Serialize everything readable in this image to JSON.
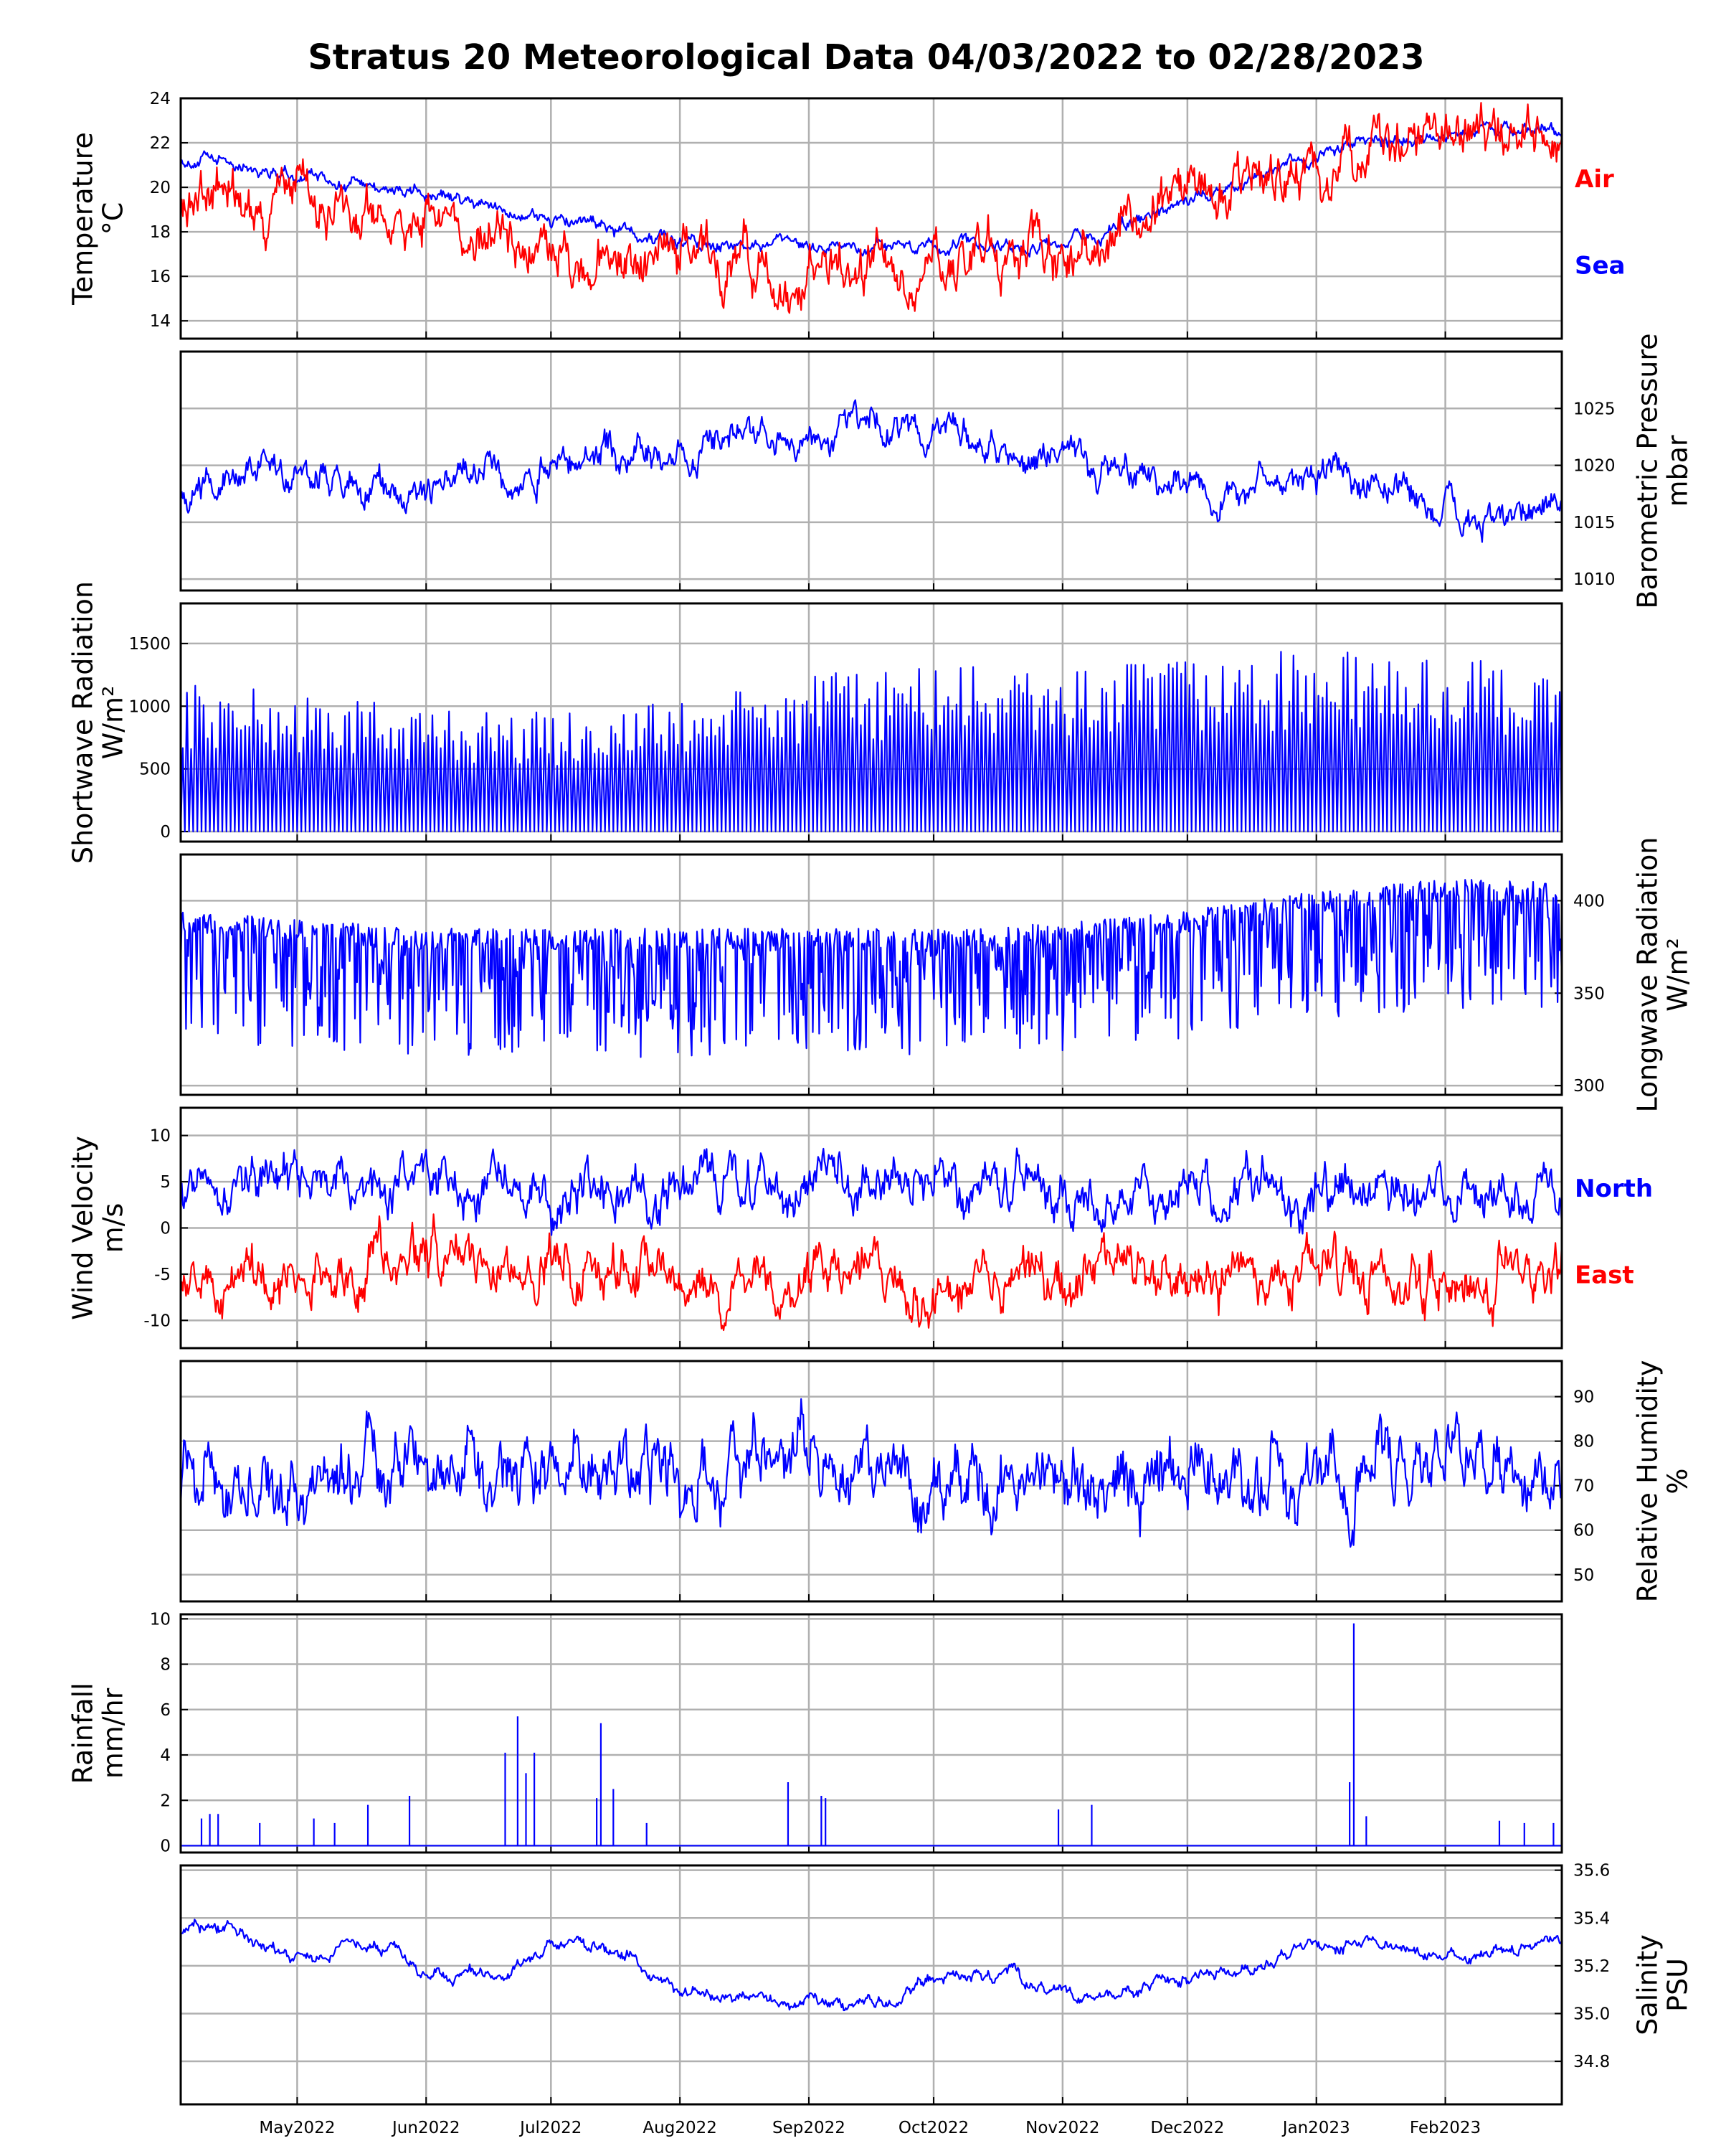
{
  "title": "Stratus 20 Meteorological Data 04/03/2022 to 02/28/2023",
  "colors": {
    "red": "#ff0000",
    "blue": "#0000ff",
    "grid": "#b0b0b0",
    "axis": "#000000"
  },
  "x_axis": {
    "start": "2022-04-03",
    "end": "2023-02-28",
    "tick_labels": [
      "May2022",
      "Jun2022",
      "Jul2022",
      "Aug2022",
      "Sep2022",
      "Oct2022",
      "Nov2022",
      "Dec2022",
      "Jan2023",
      "Feb2023"
    ],
    "tick_dates": [
      "2022-05-01",
      "2022-06-01",
      "2022-07-01",
      "2022-08-01",
      "2022-09-01",
      "2022-10-01",
      "2022-11-01",
      "2022-12-01",
      "2023-01-01",
      "2023-02-01"
    ]
  },
  "chart_data": [
    {
      "type": "line",
      "ylabel": [
        "Temperature",
        "°C"
      ],
      "ylabel_side": "left",
      "ylim": [
        13.2,
        24
      ],
      "yticks": [
        14,
        16,
        18,
        20,
        22,
        24
      ],
      "grid": true,
      "legend": [
        {
          "name": "Air",
          "color": "#ff0000"
        },
        {
          "name": "Sea",
          "color": "#0000ff"
        }
      ],
      "series": [
        {
          "name": "Sea",
          "color": "#0000ff",
          "x": [
            "2022-04-03",
            "2022-04-20",
            "2022-05-01",
            "2022-05-20",
            "2022-06-10",
            "2022-07-01",
            "2022-07-15",
            "2022-08-01",
            "2022-08-15",
            "2022-09-01",
            "2022-09-20",
            "2022-10-01",
            "2022-10-20",
            "2022-11-01",
            "2022-11-15",
            "2022-12-01",
            "2022-12-20",
            "2023-01-01",
            "2023-01-15",
            "2023-02-01",
            "2023-02-28"
          ],
          "y": [
            21.3,
            21.0,
            20.5,
            20.0,
            19.3,
            18.6,
            18.2,
            17.6,
            17.4,
            17.3,
            17.3,
            17.2,
            17.4,
            17.5,
            18.1,
            19.4,
            20.5,
            21.5,
            22.0,
            22.4,
            22.5
          ]
        },
        {
          "name": "Air",
          "color": "#ff0000",
          "x": [
            "2022-04-03",
            "2022-04-20",
            "2022-05-01",
            "2022-05-20",
            "2022-06-10",
            "2022-07-01",
            "2022-07-15",
            "2022-08-01",
            "2022-08-15",
            "2022-09-01",
            "2022-09-20",
            "2022-10-01",
            "2022-10-20",
            "2022-11-01",
            "2022-11-15",
            "2022-12-01",
            "2022-12-20",
            "2023-01-01",
            "2023-01-15",
            "2023-02-01",
            "2023-02-28"
          ],
          "y": [
            20.0,
            19.6,
            19.2,
            18.8,
            18.0,
            17.4,
            17.0,
            16.7,
            16.5,
            16.3,
            16.3,
            16.5,
            16.8,
            17.2,
            17.9,
            19.3,
            20.3,
            21.1,
            21.6,
            22.2,
            22.3
          ]
        }
      ]
    },
    {
      "type": "line",
      "ylabel": [
        "Barometric Pressure",
        "mbar"
      ],
      "ylabel_side": "right",
      "ylim": [
        1009,
        1030
      ],
      "yticks": [
        1010,
        1015,
        1020,
        1025
      ],
      "grid": true,
      "series": [
        {
          "name": "",
          "color": "#0000ff",
          "x": [
            "2022-04-03",
            "2022-04-20",
            "2022-05-01",
            "2022-05-20",
            "2022-06-01",
            "2022-06-10",
            "2022-06-20",
            "2022-07-01",
            "2022-07-15",
            "2022-08-01",
            "2022-08-15",
            "2022-09-01",
            "2022-09-15",
            "2022-10-01",
            "2022-10-15",
            "2022-11-01",
            "2022-11-15",
            "2022-12-01",
            "2022-12-15",
            "2023-01-01",
            "2023-01-15",
            "2023-02-01",
            "2023-02-15",
            "2023-02-28"
          ],
          "y": [
            1018,
            1020,
            1019,
            1018,
            1017,
            1020,
            1019,
            1020,
            1021,
            1021,
            1023,
            1022,
            1024,
            1023,
            1022,
            1020,
            1019,
            1018,
            1018,
            1019,
            1018,
            1016,
            1015,
            1017
          ]
        }
      ]
    },
    {
      "type": "line",
      "ylabel": [
        "Shortwave Radiation",
        "W/m²"
      ],
      "ylabel_side": "left",
      "ylim": [
        -80,
        1820
      ],
      "yticks": [
        0,
        500,
        1000,
        1500
      ],
      "grid": true,
      "series": [
        {
          "name": "",
          "color": "#0000ff",
          "note_type": "daily_peak",
          "x": [
            "2022-04-03",
            "2022-05-01",
            "2022-06-01",
            "2022-07-01",
            "2022-08-01",
            "2022-09-01",
            "2022-10-01",
            "2022-11-01",
            "2022-12-01",
            "2023-01-01",
            "2023-02-01",
            "2023-02-28"
          ],
          "y": [
            1200,
            1100,
            1000,
            950,
            1050,
            1250,
            1350,
            1300,
            1400,
            1450,
            1400,
            1300
          ]
        }
      ]
    },
    {
      "type": "line",
      "ylabel": [
        "Longwave Radiation",
        "W/m²"
      ],
      "ylabel_side": "right",
      "ylim": [
        295,
        425
      ],
      "yticks": [
        300,
        350,
        400
      ],
      "grid": true,
      "series": [
        {
          "name": "",
          "color": "#0000ff",
          "x": [
            "2022-04-03",
            "2022-05-01",
            "2022-06-01",
            "2022-07-01",
            "2022-08-01",
            "2022-09-01",
            "2022-10-01",
            "2022-11-01",
            "2022-12-01",
            "2023-01-01",
            "2023-02-01",
            "2023-02-28"
          ],
          "y": [
            395,
            390,
            385,
            385,
            385,
            385,
            385,
            388,
            395,
            405,
            412,
            410
          ]
        }
      ]
    },
    {
      "type": "line",
      "ylabel": [
        "Wind Velocity",
        "m/s"
      ],
      "ylabel_side": "left",
      "ylim": [
        -13,
        13
      ],
      "yticks": [
        -10,
        -5,
        0,
        5,
        10
      ],
      "grid": true,
      "legend": [
        {
          "name": "North",
          "color": "#0000ff"
        },
        {
          "name": "East",
          "color": "#ff0000"
        }
      ],
      "series": [
        {
          "name": "North",
          "color": "#0000ff",
          "x": [
            "2022-04-03",
            "2022-05-01",
            "2022-06-01",
            "2022-07-01",
            "2022-08-01",
            "2022-09-01",
            "2022-10-01",
            "2022-11-01",
            "2022-12-01",
            "2023-01-01",
            "2023-02-01",
            "2023-02-28"
          ],
          "y": [
            5,
            5,
            4,
            5,
            4,
            5,
            5,
            4,
            4,
            4,
            4,
            4
          ]
        },
        {
          "name": "East",
          "color": "#ff0000",
          "x": [
            "2022-04-03",
            "2022-05-01",
            "2022-06-01",
            "2022-07-01",
            "2022-08-01",
            "2022-09-01",
            "2022-10-01",
            "2022-11-01",
            "2022-12-01",
            "2023-01-01",
            "2023-02-01",
            "2023-02-28"
          ],
          "y": [
            -5,
            -6,
            -3,
            -3,
            -6,
            -6,
            -6,
            -5,
            -5,
            -5,
            -5,
            -5
          ]
        }
      ]
    },
    {
      "type": "line",
      "ylabel": [
        "Relative Humidity",
        "%"
      ],
      "ylabel_side": "right",
      "ylim": [
        44,
        98
      ],
      "yticks": [
        50,
        60,
        70,
        80,
        90
      ],
      "grid": true,
      "series": [
        {
          "name": "",
          "color": "#0000ff",
          "x": [
            "2022-04-03",
            "2022-05-01",
            "2022-06-01",
            "2022-07-01",
            "2022-08-01",
            "2022-09-01",
            "2022-10-01",
            "2022-11-01",
            "2022-12-01",
            "2023-01-01",
            "2023-02-01",
            "2023-02-28"
          ],
          "y": [
            72,
            73,
            74,
            72,
            73,
            74,
            70,
            71,
            74,
            74,
            75,
            73
          ]
        }
      ]
    },
    {
      "type": "bar",
      "ylabel": [
        "Rainfall",
        "mm/hr"
      ],
      "ylabel_side": "left",
      "ylim": [
        -0.3,
        10.2
      ],
      "yticks": [
        0,
        2,
        4,
        6,
        8,
        10
      ],
      "grid": true,
      "series": [
        {
          "name": "",
          "color": "#0000ff",
          "x": [
            "2022-04-08",
            "2022-04-10",
            "2022-04-12",
            "2022-04-22",
            "2022-05-05",
            "2022-05-10",
            "2022-05-18",
            "2022-05-28",
            "2022-06-20",
            "2022-06-23",
            "2022-06-25",
            "2022-06-27",
            "2022-07-12",
            "2022-07-13",
            "2022-07-16",
            "2022-07-24",
            "2022-08-27",
            "2022-09-04",
            "2022-09-05",
            "2022-10-31",
            "2022-11-08",
            "2023-01-09",
            "2023-01-10",
            "2023-01-13",
            "2023-02-14",
            "2023-02-20",
            "2023-02-27"
          ],
          "y": [
            1.2,
            1.4,
            1.4,
            1.0,
            1.2,
            1.0,
            1.8,
            2.2,
            4.1,
            5.7,
            3.2,
            4.1,
            2.1,
            5.4,
            2.5,
            1.0,
            2.8,
            2.2,
            2.1,
            1.6,
            1.8,
            2.8,
            9.8,
            1.3,
            1.1,
            1.0,
            1.0
          ]
        }
      ]
    },
    {
      "type": "line",
      "ylabel": [
        "Salinity",
        "PSU"
      ],
      "ylabel_side": "right",
      "ylim": [
        34.62,
        35.62
      ],
      "yticks": [
        34.8,
        35.0,
        35.2,
        35.4,
        35.6
      ],
      "grid": true,
      "series": [
        {
          "name": "",
          "color": "#0000ff",
          "x": [
            "2022-04-03",
            "2022-04-15",
            "2022-05-01",
            "2022-05-20",
            "2022-06-01",
            "2022-06-20",
            "2022-07-01",
            "2022-07-20",
            "2022-08-01",
            "2022-08-15",
            "2022-09-01",
            "2022-09-20",
            "2022-10-01",
            "2022-10-20",
            "2022-11-01",
            "2022-11-15",
            "2022-12-01",
            "2022-12-20",
            "2023-01-01",
            "2023-01-15",
            "2023-02-01",
            "2023-02-15",
            "2023-02-28"
          ],
          "y": [
            35.35,
            35.37,
            35.22,
            35.3,
            35.17,
            35.16,
            35.3,
            35.24,
            35.07,
            35.08,
            35.02,
            35.05,
            35.15,
            35.16,
            35.08,
            35.08,
            35.14,
            35.22,
            35.27,
            35.3,
            35.22,
            35.26,
            35.3
          ]
        }
      ]
    }
  ]
}
